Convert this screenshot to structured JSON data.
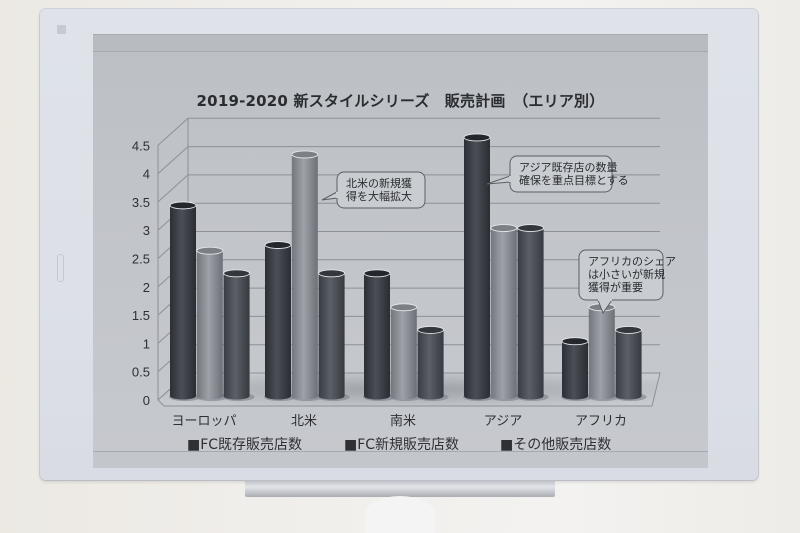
{
  "chart_data": {
    "type": "bar",
    "subtype": "3d-cylinder-clustered",
    "title": "2019-2020 新スタイルシリーズ　販売計画　（エリア別）",
    "xlabel": "",
    "ylabel": "",
    "ylim": [
      0,
      4.5
    ],
    "yticks": [
      "0",
      "0.5",
      "1",
      "1.5",
      "2",
      "2.5",
      "3",
      "3.5",
      "4",
      "4.5"
    ],
    "grid": true,
    "legend_position": "bottom",
    "categories": [
      "ヨーロッパ",
      "北米",
      "南米",
      "アジア",
      "アフリカ"
    ],
    "series": [
      {
        "name": "FC既存販売店数",
        "color": "#3a3d44",
        "values": [
          3.2,
          2.5,
          2.0,
          4.4,
          0.8
        ]
      },
      {
        "name": "FC新規販売店数",
        "color": "#8c9096",
        "values": [
          2.4,
          4.1,
          1.4,
          2.8,
          1.4
        ]
      },
      {
        "name": "その他販売店数",
        "color": "#50535a",
        "values": [
          2.0,
          2.0,
          1.0,
          2.8,
          1.0
        ]
      }
    ],
    "annotations": [
      {
        "target": "北米 / FC新規販売店数",
        "lines": [
          "北米の新規獲",
          "得を大幅拡大"
        ]
      },
      {
        "target": "アジア / FC既存販売店数",
        "lines": [
          "アジア既存店の数量",
          "確保を重点目標とする"
        ]
      },
      {
        "target": "アフリカ / FC新規販売店数",
        "lines": [
          "アフリカのシェア",
          "は小さいが新規",
          "獲得が重要"
        ]
      }
    ]
  },
  "legend": {
    "items": [
      {
        "label": "■FC既存販売店数"
      },
      {
        "label": "■FC新規販売店数"
      },
      {
        "label": "■その他販売店数"
      }
    ]
  }
}
